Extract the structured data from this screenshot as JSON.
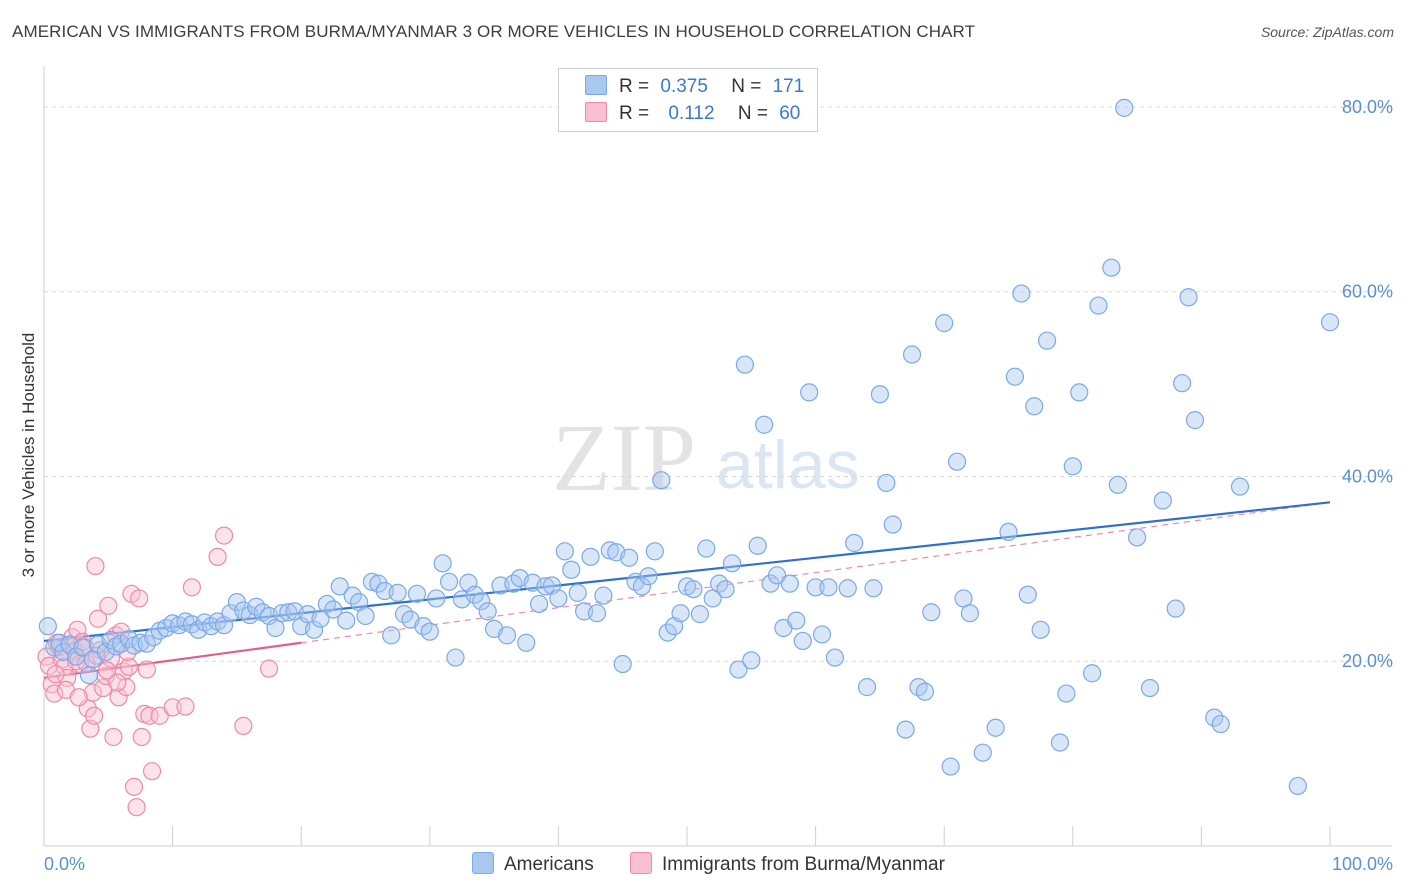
{
  "title": "AMERICAN VS IMMIGRANTS FROM BURMA/MYANMAR 3 OR MORE VEHICLES IN HOUSEHOLD CORRELATION CHART",
  "source": "Source: ZipAtlas.com",
  "watermark": {
    "zip": "ZIP",
    "atlas": "atlas"
  },
  "legend": {
    "americans": {
      "r_label": "R =",
      "r": "0.375",
      "n_label": "N =",
      "n": "171",
      "color": "#a8c8f0",
      "border": "#7aaae6"
    },
    "burma": {
      "r_label": "R =",
      "r": "0.112",
      "n_label": "N =",
      "n": "60",
      "color": "#f8c0d0",
      "border": "#ee8aa8"
    }
  },
  "bottom_legend": {
    "americans": "Americans",
    "burma": "Immigrants from Burma/Myanmar"
  },
  "chart_data": {
    "type": "scatter",
    "ylabel": "3 or more Vehicles in Household",
    "xlim": [
      0,
      100
    ],
    "ylim": [
      0,
      84
    ],
    "x_tick_labels": [
      "0.0%",
      "100.0%"
    ],
    "y_ticks": [
      20,
      40,
      60,
      80
    ],
    "y_tick_labels": [
      "20.0%",
      "40.0%",
      "60.0%",
      "80.0%"
    ],
    "grid": true,
    "series": [
      {
        "name": "Americans",
        "color": "#7aaae6",
        "fill": "rgba(168,200,240,0.45)",
        "trend": {
          "x": [
            0,
            100
          ],
          "y": [
            22.2,
            37.2
          ]
        },
        "points": [
          [
            0.3,
            23.8
          ],
          [
            0.8,
            21.5
          ],
          [
            1.2,
            22.0
          ],
          [
            1.5,
            21.0
          ],
          [
            2.0,
            21.8
          ],
          [
            2.5,
            20.5
          ],
          [
            3.0,
            21.5
          ],
          [
            3.5,
            18.5
          ],
          [
            3.8,
            20.2
          ],
          [
            4.2,
            21.8
          ],
          [
            4.8,
            21.0
          ],
          [
            5.2,
            22.3
          ],
          [
            5.6,
            21.6
          ],
          [
            6.0,
            21.9
          ],
          [
            6.6,
            22.4
          ],
          [
            7.0,
            21.7
          ],
          [
            7.5,
            22.0
          ],
          [
            8.0,
            21.9
          ],
          [
            8.5,
            22.6
          ],
          [
            9.0,
            23.3
          ],
          [
            9.5,
            23.6
          ],
          [
            10.0,
            24.1
          ],
          [
            10.5,
            23.9
          ],
          [
            11.0,
            24.3
          ],
          [
            11.5,
            24.0
          ],
          [
            12.0,
            23.4
          ],
          [
            12.5,
            24.2
          ],
          [
            13.0,
            23.8
          ],
          [
            13.5,
            24.3
          ],
          [
            14.0,
            23.9
          ],
          [
            14.5,
            25.2
          ],
          [
            15.0,
            26.4
          ],
          [
            15.5,
            25.5
          ],
          [
            16.0,
            25.0
          ],
          [
            16.5,
            25.9
          ],
          [
            17.0,
            25.3
          ],
          [
            17.5,
            24.9
          ],
          [
            18.0,
            23.6
          ],
          [
            18.5,
            25.2
          ],
          [
            19.0,
            25.3
          ],
          [
            19.5,
            25.4
          ],
          [
            20.0,
            23.8
          ],
          [
            20.5,
            25.1
          ],
          [
            21.0,
            23.4
          ],
          [
            21.5,
            24.6
          ],
          [
            22.0,
            26.2
          ],
          [
            22.5,
            25.6
          ],
          [
            23.0,
            28.1
          ],
          [
            23.5,
            24.4
          ],
          [
            24.0,
            27.1
          ],
          [
            24.5,
            26.4
          ],
          [
            25.0,
            24.9
          ],
          [
            25.5,
            28.6
          ],
          [
            26.0,
            28.4
          ],
          [
            26.5,
            27.6
          ],
          [
            27.0,
            22.8
          ],
          [
            27.5,
            27.4
          ],
          [
            28.0,
            25.1
          ],
          [
            28.5,
            24.5
          ],
          [
            29.0,
            27.3
          ],
          [
            29.5,
            23.8
          ],
          [
            30.0,
            23.2
          ],
          [
            30.5,
            26.8
          ],
          [
            31.0,
            30.6
          ],
          [
            31.5,
            28.6
          ],
          [
            32.0,
            20.4
          ],
          [
            32.5,
            26.7
          ],
          [
            33.0,
            28.5
          ],
          [
            33.5,
            27.2
          ],
          [
            34.0,
            26.5
          ],
          [
            34.5,
            25.4
          ],
          [
            35.0,
            23.5
          ],
          [
            35.5,
            28.2
          ],
          [
            36.0,
            22.8
          ],
          [
            36.5,
            28.4
          ],
          [
            37.0,
            29.0
          ],
          [
            37.5,
            22.0
          ],
          [
            38.0,
            28.5
          ],
          [
            38.5,
            26.2
          ],
          [
            39.0,
            28.1
          ],
          [
            39.5,
            28.2
          ],
          [
            40.0,
            26.8
          ],
          [
            40.5,
            31.9
          ],
          [
            41.0,
            29.9
          ],
          [
            41.5,
            27.4
          ],
          [
            42.0,
            25.4
          ],
          [
            42.5,
            31.3
          ],
          [
            43.0,
            25.2
          ],
          [
            43.5,
            27.1
          ],
          [
            44.0,
            32.0
          ],
          [
            44.5,
            31.8
          ],
          [
            45.0,
            19.7
          ],
          [
            45.5,
            31.2
          ],
          [
            46.0,
            28.6
          ],
          [
            46.5,
            28.1
          ],
          [
            47.0,
            29.2
          ],
          [
            47.5,
            31.9
          ],
          [
            48.0,
            39.6
          ],
          [
            48.5,
            23.1
          ],
          [
            49.0,
            23.8
          ],
          [
            49.5,
            25.2
          ],
          [
            50.0,
            28.1
          ],
          [
            50.5,
            27.8
          ],
          [
            51.0,
            25.1
          ],
          [
            51.5,
            32.2
          ],
          [
            52.0,
            26.8
          ],
          [
            52.5,
            28.4
          ],
          [
            53.0,
            27.8
          ],
          [
            53.5,
            30.6
          ],
          [
            54.0,
            19.1
          ],
          [
            54.5,
            52.1
          ],
          [
            55.0,
            20.1
          ],
          [
            55.5,
            32.5
          ],
          [
            56.0,
            45.6
          ],
          [
            56.5,
            28.4
          ],
          [
            57.0,
            29.3
          ],
          [
            57.5,
            23.6
          ],
          [
            58.0,
            28.4
          ],
          [
            58.5,
            24.4
          ],
          [
            59.0,
            22.2
          ],
          [
            59.5,
            49.1
          ],
          [
            60.0,
            28.0
          ],
          [
            60.5,
            22.9
          ],
          [
            61.0,
            28.0
          ],
          [
            61.5,
            20.4
          ],
          [
            62.5,
            27.9
          ],
          [
            63.0,
            32.8
          ],
          [
            64.0,
            17.2
          ],
          [
            64.5,
            27.9
          ],
          [
            65.0,
            48.9
          ],
          [
            65.5,
            39.3
          ],
          [
            66.0,
            34.8
          ],
          [
            67.0,
            12.6
          ],
          [
            67.5,
            53.2
          ],
          [
            68.0,
            17.2
          ],
          [
            68.5,
            16.7
          ],
          [
            69.0,
            25.3
          ],
          [
            70.0,
            56.6
          ],
          [
            70.5,
            8.6
          ],
          [
            71.0,
            41.6
          ],
          [
            71.5,
            26.8
          ],
          [
            72.0,
            25.2
          ],
          [
            73.0,
            10.1
          ],
          [
            74.0,
            12.8
          ],
          [
            75.0,
            34.0
          ],
          [
            75.5,
            50.8
          ],
          [
            76.0,
            59.8
          ],
          [
            76.5,
            27.2
          ],
          [
            77.0,
            47.6
          ],
          [
            77.5,
            23.4
          ],
          [
            78.0,
            54.7
          ],
          [
            79.0,
            11.2
          ],
          [
            79.5,
            16.5
          ],
          [
            80.0,
            41.1
          ],
          [
            80.5,
            49.1
          ],
          [
            81.5,
            18.7
          ],
          [
            82.0,
            58.5
          ],
          [
            83.0,
            62.6
          ],
          [
            83.5,
            39.1
          ],
          [
            84.0,
            79.9
          ],
          [
            85.0,
            33.4
          ],
          [
            86.0,
            17.1
          ],
          [
            87.0,
            37.4
          ],
          [
            88.0,
            25.7
          ],
          [
            88.5,
            50.1
          ],
          [
            89.0,
            59.4
          ],
          [
            89.5,
            46.1
          ],
          [
            91.0,
            13.9
          ],
          [
            91.5,
            13.2
          ],
          [
            93.0,
            38.9
          ],
          [
            97.5,
            6.5
          ],
          [
            100.0,
            56.7
          ]
        ]
      },
      {
        "name": "Immigrants from Burma/Myanmar",
        "color": "#ee8aa8",
        "fill": "rgba(248,192,208,0.45)",
        "trend": {
          "x": [
            0,
            20
          ],
          "y": [
            18.2,
            22.0
          ]
        },
        "trend_ext": {
          "x": [
            20,
            100
          ],
          "y": [
            22.0,
            37.2
          ]
        },
        "points": [
          [
            0.2,
            20.5
          ],
          [
            0.4,
            19.5
          ],
          [
            0.6,
            17.5
          ],
          [
            0.8,
            16.5
          ],
          [
            1.0,
            22.0
          ],
          [
            1.2,
            21.5
          ],
          [
            1.4,
            20.2
          ],
          [
            1.6,
            19.4
          ],
          [
            1.8,
            18.2
          ],
          [
            2.0,
            21.8
          ],
          [
            2.2,
            22.6
          ],
          [
            2.4,
            21.1
          ],
          [
            2.6,
            23.4
          ],
          [
            2.8,
            19.7
          ],
          [
            3.0,
            22.1
          ],
          [
            3.2,
            21.5
          ],
          [
            3.4,
            14.9
          ],
          [
            3.6,
            12.7
          ],
          [
            3.8,
            16.6
          ],
          [
            4.0,
            30.3
          ],
          [
            4.2,
            24.6
          ],
          [
            4.4,
            21.2
          ],
          [
            4.6,
            17.1
          ],
          [
            4.8,
            18.4
          ],
          [
            5.0,
            26.0
          ],
          [
            5.2,
            20.3
          ],
          [
            5.4,
            11.8
          ],
          [
            5.6,
            22.8
          ],
          [
            5.8,
            16.1
          ],
          [
            6.0,
            23.2
          ],
          [
            6.2,
            18.9
          ],
          [
            6.4,
            17.2
          ],
          [
            6.6,
            19.4
          ],
          [
            6.8,
            27.3
          ],
          [
            7.0,
            6.4
          ],
          [
            7.2,
            4.2
          ],
          [
            7.4,
            26.8
          ],
          [
            7.6,
            11.8
          ],
          [
            7.8,
            14.3
          ],
          [
            8.0,
            19.1
          ],
          [
            8.2,
            14.1
          ],
          [
            8.4,
            8.1
          ],
          [
            9.0,
            14.1
          ],
          [
            10.0,
            15.0
          ],
          [
            11.0,
            15.1
          ],
          [
            11.5,
            28.0
          ],
          [
            13.5,
            31.3
          ],
          [
            14.0,
            33.6
          ],
          [
            15.5,
            13.0
          ],
          [
            17.5,
            19.2
          ],
          [
            0.9,
            18.6
          ],
          [
            1.7,
            16.9
          ],
          [
            2.5,
            20.0
          ],
          [
            3.3,
            19.8
          ],
          [
            4.1,
            20.6
          ],
          [
            4.9,
            19.0
          ],
          [
            5.7,
            17.7
          ],
          [
            6.5,
            21.0
          ],
          [
            3.9,
            14.1
          ],
          [
            2.7,
            16.1
          ]
        ]
      }
    ]
  }
}
